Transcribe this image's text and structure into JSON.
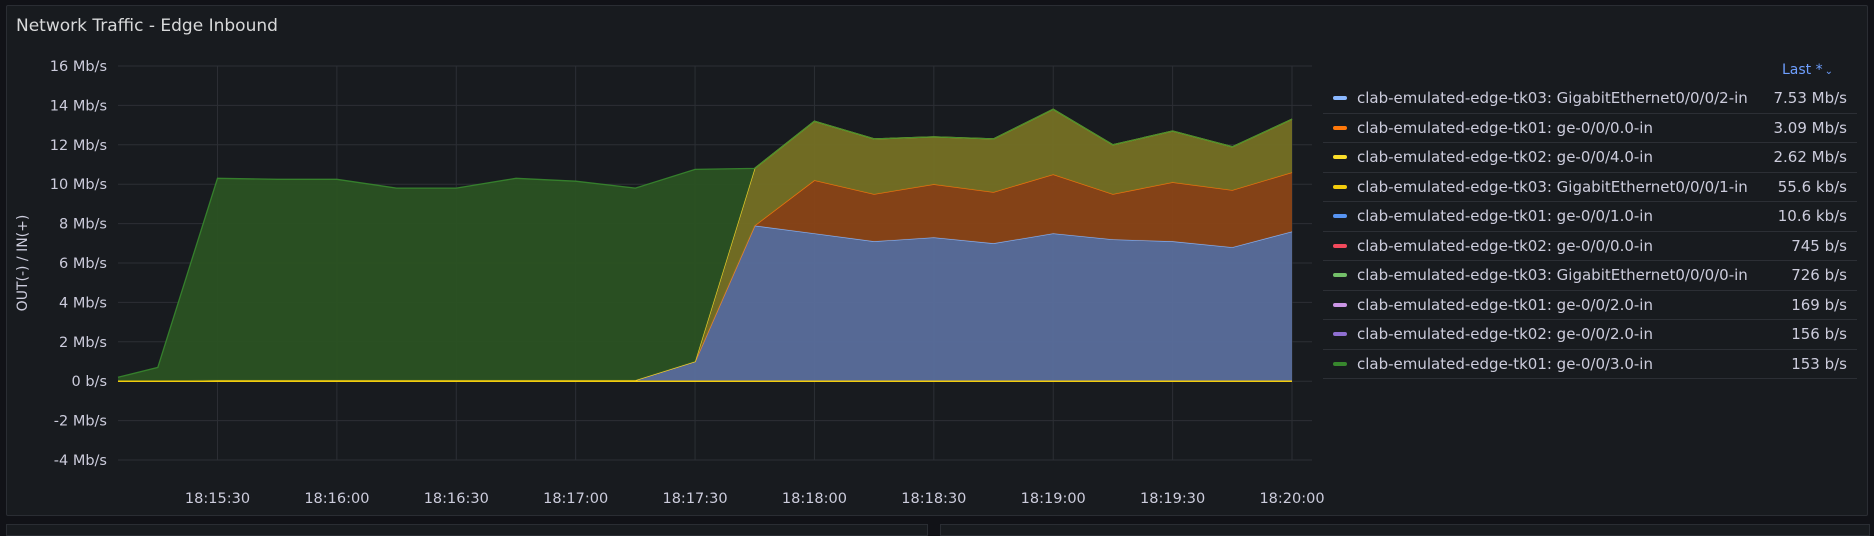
{
  "panel": {
    "title": "Network Traffic - Edge Inbound",
    "legend_header": "Last *",
    "colors": {
      "background": "#181b1f",
      "grid": "#2c2f35",
      "text": "#ccccdc",
      "accent": "#6e9fff"
    }
  },
  "legend": [
    {
      "name": "clab-emulated-edge-tk03: GigabitEthernet0/0/0/2-in",
      "value": "7.53 Mb/s",
      "color": "#8ab8ff"
    },
    {
      "name": "clab-emulated-edge-tk01: ge-0/0/0.0-in",
      "value": "3.09 Mb/s",
      "color": "#ff780a"
    },
    {
      "name": "clab-emulated-edge-tk02: ge-0/0/4.0-in",
      "value": "2.62 Mb/s",
      "color": "#fade2a"
    },
    {
      "name": "clab-emulated-edge-tk03: GigabitEthernet0/0/0/1-in",
      "value": "55.6 kb/s",
      "color": "#f2cc0c"
    },
    {
      "name": "clab-emulated-edge-tk01: ge-0/0/1.0-in",
      "value": "10.6 kb/s",
      "color": "#5794f2"
    },
    {
      "name": "clab-emulated-edge-tk02: ge-0/0/0.0-in",
      "value": "745 b/s",
      "color": "#f2495c"
    },
    {
      "name": "clab-emulated-edge-tk03: GigabitEthernet0/0/0/0-in",
      "value": "726 b/s",
      "color": "#73bf69"
    },
    {
      "name": "clab-emulated-edge-tk01: ge-0/0/2.0-in",
      "value": "169 b/s",
      "color": "#ca95e5"
    },
    {
      "name": "clab-emulated-edge-tk02: ge-0/0/2.0-in",
      "value": "156 b/s",
      "color": "#8f6fd1"
    },
    {
      "name": "clab-emulated-edge-tk01: ge-0/0/3.0-in",
      "value": "153 b/s",
      "color": "#37872d"
    }
  ],
  "chart_data": {
    "type": "area",
    "stacked": true,
    "ylabel": "OUT(-) / IN(+)",
    "ylim": [
      -4,
      16
    ],
    "yticks": [
      16,
      14,
      12,
      10,
      8,
      6,
      4,
      2,
      0,
      -2,
      -4
    ],
    "ytick_labels": [
      "16 Mb/s",
      "14 Mb/s",
      "12 Mb/s",
      "10 Mb/s",
      "8 Mb/s",
      "6 Mb/s",
      "4 Mb/s",
      "2 Mb/s",
      "0 b/s",
      "-2 Mb/s",
      "-4 Mb/s"
    ],
    "xlim": [
      "18:15:05",
      "18:20:00"
    ],
    "xticks": [
      "18:15:30",
      "18:16:00",
      "18:16:30",
      "18:17:00",
      "18:17:30",
      "18:18:00",
      "18:18:30",
      "18:19:00",
      "18:19:30",
      "18:20:00"
    ],
    "x": [
      "18:15:05",
      "18:15:15",
      "18:15:30",
      "18:15:45",
      "18:16:00",
      "18:16:15",
      "18:16:30",
      "18:16:45",
      "18:17:00",
      "18:17:15",
      "18:17:30",
      "18:17:45",
      "18:18:00",
      "18:18:15",
      "18:18:30",
      "18:18:45",
      "18:19:00",
      "18:19:15",
      "18:19:30",
      "18:19:45",
      "18:20:00"
    ],
    "series": [
      {
        "name": "clab-emulated-edge-tk03: GigabitEthernet0/0/0/2-in",
        "color": "#8ab8ff",
        "fill": "#5a6e9c",
        "values": [
          0,
          0,
          0.05,
          0.05,
          0.05,
          0.05,
          0.05,
          0.05,
          0.05,
          0.05,
          1.0,
          7.9,
          7.5,
          7.1,
          7.3,
          7.0,
          7.5,
          7.2,
          7.1,
          6.8,
          7.6
        ]
      },
      {
        "name": "clab-emulated-edge-tk01: ge-0/0/0.0-in",
        "color": "#ff780a",
        "fill": "#8a4417",
        "values": [
          0,
          0,
          0,
          0,
          0,
          0,
          0,
          0,
          0,
          0,
          0,
          0,
          2.7,
          2.4,
          2.7,
          2.6,
          3.0,
          2.3,
          3.0,
          2.9,
          3.0
        ]
      },
      {
        "name": "clab-emulated-edge-tk02: ge-0/0/4.0-in",
        "color": "#fade2a",
        "fill": "#757024",
        "values": [
          0,
          0,
          0,
          0,
          0,
          0,
          0,
          0,
          0,
          0,
          0,
          2.9,
          3.0,
          2.8,
          2.4,
          2.7,
          3.3,
          2.5,
          2.6,
          2.2,
          2.7
        ]
      },
      {
        "name": "clab-emulated-edge-tk01: ge-0/0/3.0-in",
        "color": "#37872d",
        "fill": "#2a5223",
        "values": [
          0.2,
          0.7,
          10.25,
          10.2,
          10.2,
          9.75,
          9.75,
          10.25,
          10.1,
          9.75,
          9.75,
          0,
          0,
          0,
          0,
          0,
          0,
          0,
          0,
          0,
          0
        ]
      }
    ]
  }
}
